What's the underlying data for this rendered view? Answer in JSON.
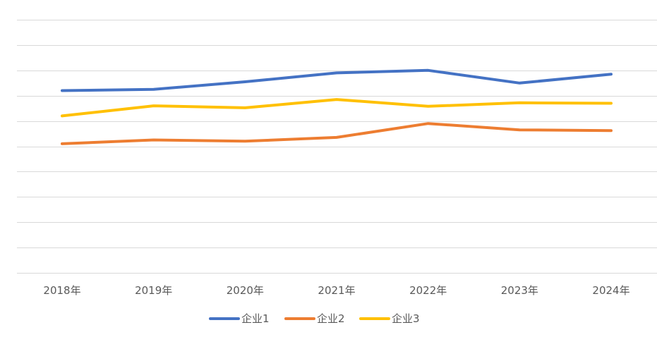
{
  "chart_data": {
    "type": "line",
    "title": "",
    "xlabel": "",
    "ylabel": "",
    "categories": [
      "2018年",
      "2019年",
      "2020年",
      "2021年",
      "2022年",
      "2023年",
      "2024年"
    ],
    "ylim": [
      0,
      10
    ],
    "y_gridlines": 10,
    "y_tick_labels_visible": false,
    "grid": true,
    "legend_position": "bottom",
    "series": [
      {
        "name": "企业1",
        "color": "#4472c4",
        "values": [
          7.2,
          7.25,
          7.55,
          7.9,
          8.0,
          7.5,
          7.85
        ]
      },
      {
        "name": "企业2",
        "color": "#ed7d31",
        "values": [
          5.1,
          5.25,
          5.2,
          5.35,
          5.9,
          5.65,
          5.62
        ]
      },
      {
        "name": "企业3",
        "color": "#ffc000",
        "values": [
          6.2,
          6.6,
          6.52,
          6.85,
          6.58,
          6.72,
          6.7
        ]
      }
    ]
  }
}
